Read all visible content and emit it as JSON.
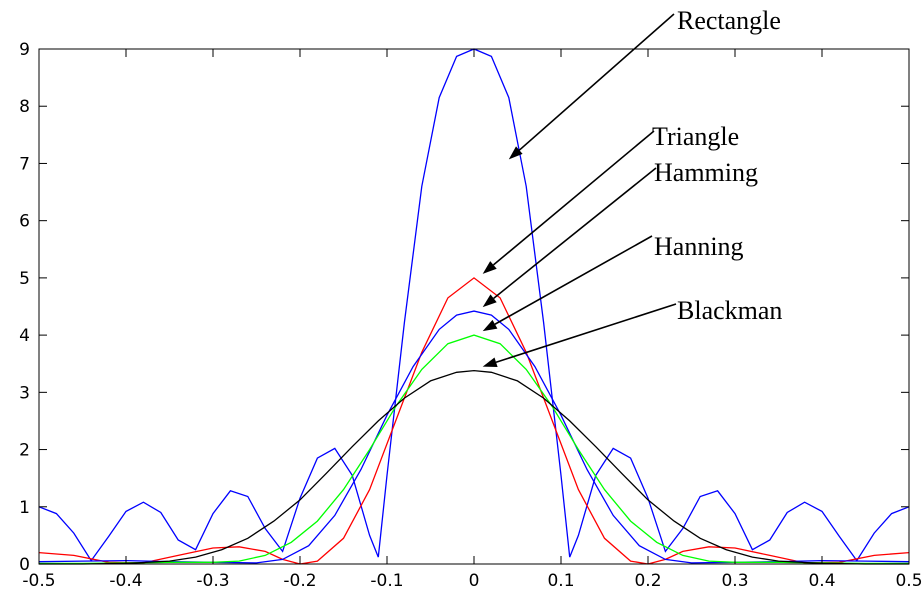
{
  "chart_data": {
    "type": "line",
    "title": "",
    "xlabel": "",
    "ylabel": "",
    "xlim": [
      -0.5,
      0.5
    ],
    "ylim": [
      0,
      9
    ],
    "grid": false,
    "x_ticks": [
      -0.5,
      -0.4,
      -0.3,
      -0.2,
      -0.1,
      0,
      0.1,
      0.2,
      0.3,
      0.4,
      0.5
    ],
    "x_tick_labels": [
      "-0.5",
      "-0.4",
      "-0.3",
      "-0.2",
      "-0.1",
      "0",
      "0.1",
      "0.2",
      "0.3",
      "0.4",
      "0.5"
    ],
    "y_ticks": [
      0,
      1,
      2,
      3,
      4,
      5,
      6,
      7,
      8,
      9
    ],
    "y_tick_labels": [
      "0",
      "1",
      "2",
      "3",
      "4",
      "5",
      "6",
      "7",
      "8",
      "9"
    ],
    "series": [
      {
        "name": "Rectangle",
        "color": "#0000ff",
        "x": [
          -0.5,
          -0.48,
          -0.46,
          -0.44,
          -0.42,
          -0.4,
          -0.38,
          -0.36,
          -0.34,
          -0.32,
          -0.3,
          -0.28,
          -0.26,
          -0.24,
          -0.22,
          -0.2,
          -0.18,
          -0.16,
          -0.14,
          -0.12,
          -0.11,
          -0.1,
          -0.08,
          -0.06,
          -0.04,
          -0.02,
          0,
          0.02,
          0.04,
          0.06,
          0.08,
          0.1,
          0.11,
          0.12,
          0.14,
          0.16,
          0.18,
          0.2,
          0.22,
          0.24,
          0.26,
          0.28,
          0.3,
          0.32,
          0.34,
          0.36,
          0.38,
          0.4,
          0.42,
          0.44,
          0.46,
          0.48,
          0.5
        ],
        "values": [
          1.0,
          0.88,
          0.54,
          0.06,
          0.48,
          0.92,
          1.08,
          0.9,
          0.42,
          0.25,
          0.88,
          1.28,
          1.18,
          0.62,
          0.22,
          1.15,
          1.85,
          2.02,
          1.55,
          0.5,
          0.12,
          1.55,
          4.22,
          6.6,
          8.15,
          8.87,
          9.0,
          8.87,
          8.15,
          6.6,
          4.22,
          1.55,
          0.12,
          0.5,
          1.55,
          2.02,
          1.85,
          1.15,
          0.22,
          0.62,
          1.18,
          1.28,
          0.88,
          0.25,
          0.42,
          0.9,
          1.08,
          0.92,
          0.48,
          0.06,
          0.54,
          0.88,
          1.0
        ]
      },
      {
        "name": "Triangle",
        "color": "#ff0000",
        "x": [
          -0.5,
          -0.46,
          -0.42,
          -0.38,
          -0.34,
          -0.3,
          -0.27,
          -0.24,
          -0.22,
          -0.2,
          -0.18,
          -0.15,
          -0.12,
          -0.09,
          -0.06,
          -0.03,
          0,
          0.03,
          0.06,
          0.09,
          0.12,
          0.15,
          0.18,
          0.2,
          0.22,
          0.24,
          0.27,
          0.3,
          0.34,
          0.38,
          0.42,
          0.46,
          0.5
        ],
        "values": [
          0.2,
          0.15,
          0.03,
          0.02,
          0.15,
          0.28,
          0.3,
          0.22,
          0.08,
          0.0,
          0.05,
          0.45,
          1.3,
          2.5,
          3.7,
          4.65,
          5.0,
          4.65,
          3.7,
          2.5,
          1.3,
          0.45,
          0.05,
          0.0,
          0.08,
          0.22,
          0.3,
          0.28,
          0.15,
          0.02,
          0.03,
          0.15,
          0.2
        ]
      },
      {
        "name": "Hamming",
        "color": "#0000ff",
        "x": [
          -0.5,
          -0.45,
          -0.4,
          -0.35,
          -0.3,
          -0.25,
          -0.22,
          -0.19,
          -0.16,
          -0.13,
          -0.1,
          -0.07,
          -0.04,
          -0.02,
          0,
          0.02,
          0.04,
          0.07,
          0.1,
          0.13,
          0.16,
          0.19,
          0.22,
          0.25,
          0.3,
          0.35,
          0.4,
          0.45,
          0.5
        ],
        "values": [
          0.04,
          0.05,
          0.06,
          0.04,
          0.03,
          0.02,
          0.08,
          0.32,
          0.85,
          1.65,
          2.6,
          3.45,
          4.1,
          4.35,
          4.42,
          4.35,
          4.1,
          3.45,
          2.6,
          1.65,
          0.85,
          0.32,
          0.08,
          0.02,
          0.03,
          0.04,
          0.06,
          0.05,
          0.04
        ]
      },
      {
        "name": "Hanning",
        "color": "#00ff00",
        "x": [
          -0.5,
          -0.45,
          -0.4,
          -0.35,
          -0.3,
          -0.27,
          -0.24,
          -0.21,
          -0.18,
          -0.15,
          -0.12,
          -0.09,
          -0.06,
          -0.03,
          0,
          0.03,
          0.06,
          0.09,
          0.12,
          0.15,
          0.18,
          0.21,
          0.24,
          0.27,
          0.3,
          0.35,
          0.4,
          0.45,
          0.5
        ],
        "values": [
          0.01,
          0.01,
          0.02,
          0.03,
          0.03,
          0.05,
          0.15,
          0.38,
          0.75,
          1.3,
          2.0,
          2.75,
          3.4,
          3.85,
          4.0,
          3.85,
          3.4,
          2.75,
          2.0,
          1.3,
          0.75,
          0.38,
          0.15,
          0.05,
          0.03,
          0.03,
          0.02,
          0.01,
          0.01
        ]
      },
      {
        "name": "Blackman",
        "color": "#000000",
        "x": [
          -0.5,
          -0.45,
          -0.4,
          -0.35,
          -0.32,
          -0.29,
          -0.26,
          -0.23,
          -0.2,
          -0.17,
          -0.14,
          -0.11,
          -0.08,
          -0.05,
          -0.02,
          0,
          0.02,
          0.05,
          0.08,
          0.11,
          0.14,
          0.17,
          0.2,
          0.23,
          0.26,
          0.29,
          0.32,
          0.35,
          0.4,
          0.45,
          0.5
        ],
        "values": [
          0.0,
          0.0,
          0.01,
          0.05,
          0.12,
          0.25,
          0.45,
          0.75,
          1.12,
          1.58,
          2.05,
          2.5,
          2.9,
          3.2,
          3.35,
          3.38,
          3.35,
          3.2,
          2.9,
          2.5,
          2.05,
          1.58,
          1.12,
          0.75,
          0.45,
          0.25,
          0.12,
          0.05,
          0.01,
          0.0,
          0.0
        ]
      }
    ],
    "annotations": [
      {
        "text": "Rectangle",
        "x": 0.04,
        "y": 7.0
      },
      {
        "text": "Triangle",
        "x": 0.01,
        "y": 5.0
      },
      {
        "text": "Hamming",
        "x": 0.01,
        "y": 4.42
      },
      {
        "text": "Hanning",
        "x": 0.01,
        "y": 4.0
      },
      {
        "text": "Blackman",
        "x": 0.01,
        "y": 3.38
      }
    ]
  }
}
